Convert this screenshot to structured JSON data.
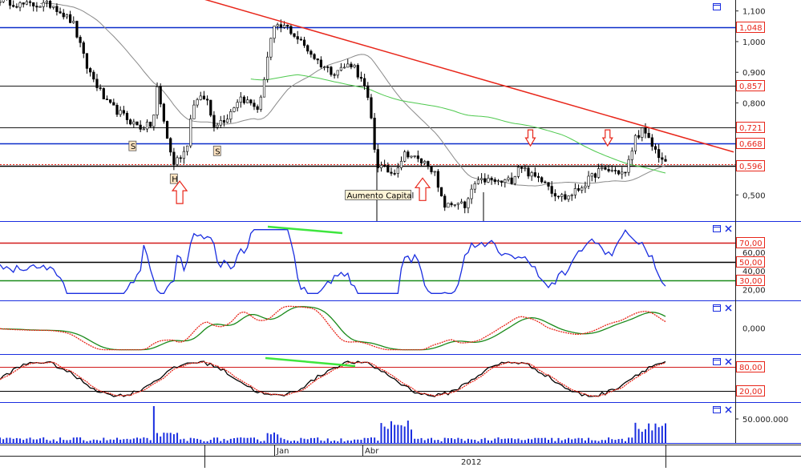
{
  "chart_data": [
    {
      "type": "candlestick",
      "panel": "price",
      "price_axis_ticks": [
        "1,100",
        "1,000",
        "0,900",
        "0,800",
        "0,500"
      ],
      "level_tags": [
        {
          "label": "1,048",
          "value": 1.048,
          "line_color": "#0a2cc9"
        },
        {
          "label": "0,857",
          "value": 0.857,
          "line_color": "#1a1a1a"
        },
        {
          "label": "0,721",
          "value": 0.721,
          "line_color": "#1a1a1a"
        },
        {
          "label": "0,668",
          "value": 0.668,
          "line_color": "#0a2cc9"
        },
        {
          "label": "0,596",
          "value": 0.596,
          "line_color": "#000000"
        }
      ],
      "trend_line": {
        "color": "#e8261a",
        "from": {
          "t": 0.27,
          "price": 1.18
        },
        "to": {
          "t": 1.0,
          "price": 0.64
        }
      },
      "annotations": [
        {
          "label": "S",
          "t": 0.195,
          "price": 0.652
        },
        {
          "label": "S",
          "t": 0.322,
          "price": 0.636
        },
        {
          "label": "H",
          "t": 0.257,
          "price": 0.545
        },
        {
          "label": "Aumento Capital",
          "t": 0.52,
          "price": 0.492
        }
      ],
      "arrows": [
        {
          "direction": "up",
          "t": 0.27,
          "price": 0.545
        },
        {
          "direction": "up",
          "t": 0.635,
          "price": 0.555
        },
        {
          "direction": "down",
          "t": 0.797,
          "price": 0.66
        },
        {
          "direction": "down",
          "t": 0.913,
          "price": 0.66
        }
      ],
      "series_colors": {
        "price": "#000000",
        "moving_average_short": "#8a8a8a",
        "moving_average_long": "#4ec94e"
      }
    },
    {
      "type": "line",
      "panel": "rsi",
      "levels": [
        {
          "label": "70,00",
          "value": 70,
          "line_color": "#d21a1a"
        },
        {
          "label": "50,00",
          "value": 50,
          "line_color": "#000000"
        },
        {
          "label": "30,00",
          "value": 30,
          "line_color": "#1a8a1a"
        }
      ],
      "axis_ticks": [
        "60,00",
        "40,00",
        "20,00"
      ],
      "series_color": "#1a2ee0"
    },
    {
      "type": "line",
      "panel": "macd",
      "axis_ticks": [
        "0,000"
      ],
      "series_colors": [
        "#e8261a",
        "#1a8a1a"
      ]
    },
    {
      "type": "line",
      "panel": "stochastic",
      "levels": [
        {
          "label": "80,00",
          "value": 80,
          "line_color": "#d21a1a"
        },
        {
          "label": "20,00",
          "value": 20,
          "line_color": "#000000"
        }
      ],
      "series_colors": [
        "#000000",
        "#e8261a"
      ]
    },
    {
      "type": "bar",
      "panel": "volume",
      "axis_ticks": [
        "50.000.000"
      ],
      "series_color": "#1a2ee0"
    }
  ],
  "time_axis": {
    "months": [
      "Jan",
      "Abr"
    ],
    "year": "2012"
  },
  "panel_icon_names": [
    "maximize-icon",
    "close-icon"
  ]
}
